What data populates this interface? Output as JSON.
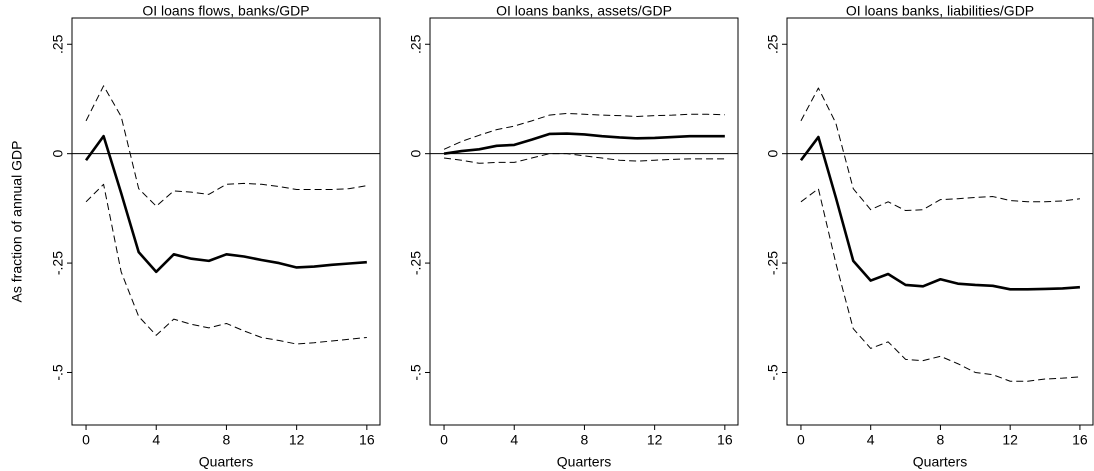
{
  "chart_data": [
    {
      "type": "line",
      "title": "OI loans flows, banks/GDP",
      "ylabel": "As fraction of annual GDP",
      "xlabel": "Quarters",
      "x": [
        0,
        1,
        2,
        3,
        4,
        5,
        6,
        7,
        8,
        9,
        10,
        11,
        12,
        13,
        14,
        15,
        16
      ],
      "xlim": [
        -0.8,
        16.75
      ],
      "xticks": [
        0,
        4,
        8,
        12,
        16
      ],
      "ylim": [
        -0.62,
        0.31
      ],
      "yticks": [
        {
          "value": 0.25,
          "label": ".25"
        },
        0,
        {
          "value": -0.25,
          "label": "-.25"
        },
        {
          "value": -0.5,
          "label": "-.5"
        }
      ],
      "hline": 0,
      "series": [
        {
          "color": "#000000",
          "dashed": false,
          "values": [
            -0.015,
            0.04,
            -0.09,
            -0.225,
            -0.27,
            -0.23,
            -0.24,
            -0.245,
            -0.23,
            -0.235,
            -0.243,
            -0.25,
            -0.26,
            -0.258,
            -0.254,
            -0.251,
            -0.248
          ]
        },
        {
          "color": "#000000",
          "dashed": true,
          "values": [
            0.075,
            0.155,
            0.085,
            -0.08,
            -0.12,
            -0.085,
            -0.088,
            -0.093,
            -0.07,
            -0.068,
            -0.07,
            -0.075,
            -0.082,
            -0.082,
            -0.082,
            -0.08,
            -0.073
          ]
        },
        {
          "color": "#000000",
          "dashed": true,
          "values": [
            -0.11,
            -0.07,
            -0.27,
            -0.372,
            -0.415,
            -0.378,
            -0.39,
            -0.398,
            -0.388,
            -0.405,
            -0.42,
            -0.427,
            -0.435,
            -0.432,
            -0.428,
            -0.424,
            -0.42
          ]
        }
      ]
    },
    {
      "type": "line",
      "title": "OI loans banks, assets/GDP",
      "xlabel": "Quarters",
      "x": [
        0,
        1,
        2,
        3,
        4,
        5,
        6,
        7,
        8,
        9,
        10,
        11,
        12,
        13,
        14,
        15,
        16
      ],
      "xlim": [
        -0.8,
        16.75
      ],
      "xticks": [
        0,
        4,
        8,
        12,
        16
      ],
      "ylim": [
        -0.62,
        0.31
      ],
      "yticks": [
        {
          "value": 0.25,
          "label": ".25"
        },
        0,
        {
          "value": -0.25,
          "label": "-.25"
        },
        {
          "value": -0.5,
          "label": "-.5"
        }
      ],
      "hline": 0,
      "series": [
        {
          "color": "#000000",
          "dashed": false,
          "values": [
            0,
            0.006,
            0.01,
            0.018,
            0.02,
            0.032,
            0.045,
            0.046,
            0.044,
            0.04,
            0.037,
            0.035,
            0.036,
            0.038,
            0.04,
            0.04,
            0.04
          ]
        },
        {
          "color": "#000000",
          "dashed": true,
          "values": [
            0.01,
            0.028,
            0.042,
            0.055,
            0.063,
            0.075,
            0.088,
            0.092,
            0.09,
            0.088,
            0.087,
            0.085,
            0.087,
            0.088,
            0.09,
            0.09,
            0.089
          ]
        },
        {
          "color": "#000000",
          "dashed": true,
          "values": [
            -0.01,
            -0.015,
            -0.022,
            -0.02,
            -0.02,
            -0.01,
            0,
            0,
            -0.005,
            -0.01,
            -0.015,
            -0.017,
            -0.015,
            -0.013,
            -0.012,
            -0.012,
            -0.012
          ]
        }
      ]
    },
    {
      "type": "line",
      "title": "OI loans banks, liabilities/GDP",
      "xlabel": "Quarters",
      "x": [
        0,
        1,
        2,
        3,
        4,
        5,
        6,
        7,
        8,
        9,
        10,
        11,
        12,
        13,
        14,
        15,
        16
      ],
      "xlim": [
        -0.8,
        16.75
      ],
      "xticks": [
        0,
        4,
        8,
        12,
        16
      ],
      "ylim": [
        -0.62,
        0.31
      ],
      "yticks": [
        {
          "value": 0.25,
          "label": ".25"
        },
        0,
        {
          "value": -0.25,
          "label": "-.25"
        },
        {
          "value": -0.5,
          "label": "-.5"
        }
      ],
      "hline": 0,
      "series": [
        {
          "color": "#000000",
          "dashed": false,
          "values": [
            -0.015,
            0.038,
            -0.1,
            -0.245,
            -0.29,
            -0.275,
            -0.3,
            -0.303,
            -0.287,
            -0.297,
            -0.3,
            -0.302,
            -0.31,
            -0.31,
            -0.309,
            -0.308,
            -0.305
          ]
        },
        {
          "color": "#000000",
          "dashed": true,
          "values": [
            0.075,
            0.15,
            0.07,
            -0.08,
            -0.128,
            -0.11,
            -0.13,
            -0.128,
            -0.105,
            -0.103,
            -0.1,
            -0.098,
            -0.107,
            -0.11,
            -0.11,
            -0.108,
            -0.103
          ]
        },
        {
          "color": "#000000",
          "dashed": true,
          "values": [
            -0.11,
            -0.08,
            -0.25,
            -0.4,
            -0.445,
            -0.43,
            -0.47,
            -0.473,
            -0.463,
            -0.48,
            -0.5,
            -0.505,
            -0.52,
            -0.52,
            -0.515,
            -0.513,
            -0.51
          ]
        }
      ]
    }
  ]
}
